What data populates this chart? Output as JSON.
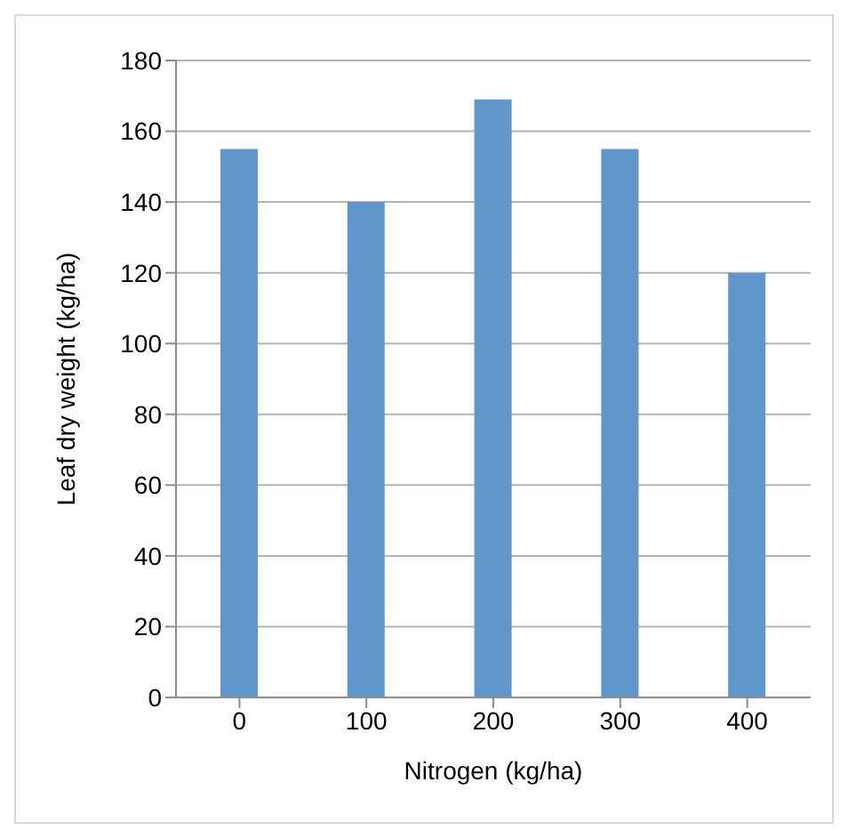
{
  "chart_data": {
    "type": "bar",
    "xlabel": "Nitrogen (kg/ha)",
    "ylabel": "Leaf dry weight (kg/ha)",
    "categories": [
      "0",
      "100",
      "200",
      "300",
      "400"
    ],
    "values": [
      155,
      140,
      169,
      155,
      120
    ],
    "color": "#5f96cb",
    "ylim": [
      0,
      180
    ],
    "yticks": [
      0,
      20,
      40,
      60,
      80,
      100,
      120,
      140,
      160,
      180
    ],
    "grid": "y",
    "legend": false
  }
}
